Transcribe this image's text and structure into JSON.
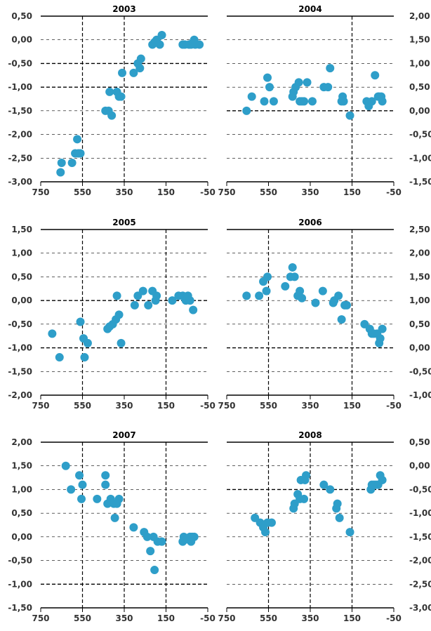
{
  "colors": {
    "point": "#2e9ec9",
    "grid": "#000000",
    "text": "#333333"
  },
  "chart_data": [
    {
      "type": "scatter",
      "title": "2003",
      "axis_side": "left",
      "xlim": [
        750,
        -50
      ],
      "ylim": [
        -3.0,
        0.5
      ],
      "x_ticks": [
        "750",
        "550",
        "350",
        "150",
        "-50"
      ],
      "y_ticks": [
        "0,50",
        "0,00",
        "-0,50",
        "-1,00",
        "-1,50",
        "-2,00",
        "-2,50",
        "-3,00"
      ],
      "grid": "y dashed, bold at -0.5 and -1.0; vertical dashed at 550 and 350",
      "points": [
        {
          "x": 655,
          "y": -2.8
        },
        {
          "x": 650,
          "y": -2.6
        },
        {
          "x": 600,
          "y": -2.6
        },
        {
          "x": 585,
          "y": -2.4
        },
        {
          "x": 575,
          "y": -2.1
        },
        {
          "x": 570,
          "y": -2.4
        },
        {
          "x": 560,
          "y": -2.4
        },
        {
          "x": 440,
          "y": -1.5
        },
        {
          "x": 425,
          "y": -1.5
        },
        {
          "x": 420,
          "y": -1.1
        },
        {
          "x": 410,
          "y": -1.6
        },
        {
          "x": 385,
          "y": -1.1
        },
        {
          "x": 375,
          "y": -1.2
        },
        {
          "x": 360,
          "y": -0.7
        },
        {
          "x": 365,
          "y": -1.2
        },
        {
          "x": 305,
          "y": -0.7
        },
        {
          "x": 285,
          "y": -0.5
        },
        {
          "x": 275,
          "y": -0.6
        },
        {
          "x": 270,
          "y": -0.4
        },
        {
          "x": 215,
          "y": -0.1
        },
        {
          "x": 205,
          "y": -0.05
        },
        {
          "x": 195,
          "y": 0.0
        },
        {
          "x": 180,
          "y": -0.1
        },
        {
          "x": 170,
          "y": 0.1
        },
        {
          "x": 70,
          "y": -0.1
        },
        {
          "x": 60,
          "y": -0.1
        },
        {
          "x": 40,
          "y": -0.1
        },
        {
          "x": 30,
          "y": -0.1
        },
        {
          "x": 20,
          "y": -0.05
        },
        {
          "x": 15,
          "y": 0.0
        },
        {
          "x": 10,
          "y": -0.1
        },
        {
          "x": -10,
          "y": -0.1
        }
      ]
    },
    {
      "type": "scatter",
      "title": "2004",
      "axis_side": "right",
      "xlim": [
        750,
        -50
      ],
      "ylim": [
        -1.5,
        2.0
      ],
      "x_ticks": [
        "750",
        "550",
        "350",
        "150",
        "-50"
      ],
      "y_ticks": [
        "2,00",
        "1,50",
        "1,00",
        "0,50",
        "0,00",
        "-0,50",
        "-1,00",
        "-1,50"
      ],
      "grid": "y dashed, bold at 0.0; vertical dashed at 150",
      "points": [
        {
          "x": 655,
          "y": 0.0
        },
        {
          "x": 630,
          "y": 0.3
        },
        {
          "x": 570,
          "y": 0.2
        },
        {
          "x": 555,
          "y": 0.7
        },
        {
          "x": 545,
          "y": 0.5
        },
        {
          "x": 525,
          "y": 0.2
        },
        {
          "x": 435,
          "y": 0.3
        },
        {
          "x": 430,
          "y": 0.4
        },
        {
          "x": 420,
          "y": 0.5
        },
        {
          "x": 405,
          "y": 0.6
        },
        {
          "x": 400,
          "y": 0.2
        },
        {
          "x": 390,
          "y": 0.2
        },
        {
          "x": 380,
          "y": 0.2
        },
        {
          "x": 365,
          "y": 0.6
        },
        {
          "x": 340,
          "y": 0.2
        },
        {
          "x": 285,
          "y": 0.5
        },
        {
          "x": 265,
          "y": 0.5
        },
        {
          "x": 255,
          "y": 0.9
        },
        {
          "x": 200,
          "y": 0.2
        },
        {
          "x": 195,
          "y": 0.3
        },
        {
          "x": 190,
          "y": 0.2
        },
        {
          "x": 160,
          "y": -0.1
        },
        {
          "x": 80,
          "y": 0.2
        },
        {
          "x": 70,
          "y": 0.1
        },
        {
          "x": 55,
          "y": 0.2
        },
        {
          "x": 40,
          "y": 0.75
        },
        {
          "x": 25,
          "y": 0.3
        },
        {
          "x": 20,
          "y": 0.3
        },
        {
          "x": 10,
          "y": 0.3
        },
        {
          "x": 5,
          "y": 0.2
        }
      ]
    },
    {
      "type": "scatter",
      "title": "2005",
      "axis_side": "left",
      "xlim": [
        750,
        -50
      ],
      "ylim": [
        -2.0,
        1.5
      ],
      "x_ticks": [
        "750",
        "550",
        "350",
        "150",
        "-50"
      ],
      "y_ticks": [
        "1,50",
        "1,00",
        "0,50",
        "0,00",
        "-0,50",
        "-1,00",
        "-1,50",
        "-2,00"
      ],
      "grid": "y dashed, bold at 0.0 and -1.0; vertical dashed at 550 and 150",
      "points": [
        {
          "x": 695,
          "y": -0.7
        },
        {
          "x": 660,
          "y": -1.2
        },
        {
          "x": 560,
          "y": -0.45
        },
        {
          "x": 545,
          "y": -0.8
        },
        {
          "x": 540,
          "y": -1.2
        },
        {
          "x": 525,
          "y": -0.9
        },
        {
          "x": 430,
          "y": -0.6
        },
        {
          "x": 420,
          "y": -0.55
        },
        {
          "x": 405,
          "y": -0.5
        },
        {
          "x": 390,
          "y": -0.4
        },
        {
          "x": 385,
          "y": 0.1
        },
        {
          "x": 375,
          "y": -0.3
        },
        {
          "x": 365,
          "y": -0.9
        },
        {
          "x": 300,
          "y": -0.1
        },
        {
          "x": 285,
          "y": 0.1
        },
        {
          "x": 260,
          "y": 0.2
        },
        {
          "x": 235,
          "y": -0.1
        },
        {
          "x": 215,
          "y": 0.2
        },
        {
          "x": 200,
          "y": 0.0
        },
        {
          "x": 195,
          "y": 0.1
        },
        {
          "x": 120,
          "y": 0.0
        },
        {
          "x": 90,
          "y": 0.1
        },
        {
          "x": 70,
          "y": 0.1
        },
        {
          "x": 60,
          "y": 0.05
        },
        {
          "x": 55,
          "y": 0.0
        },
        {
          "x": 45,
          "y": 0.1
        },
        {
          "x": 35,
          "y": 0.0
        },
        {
          "x": 20,
          "y": -0.2
        }
      ]
    },
    {
      "type": "scatter",
      "title": "2006",
      "axis_side": "right",
      "xlim": [
        750,
        -50
      ],
      "ylim": [
        -1.0,
        2.5
      ],
      "x_ticks": [
        "750",
        "550",
        "350",
        "150",
        "-50"
      ],
      "y_ticks": [
        "2,50",
        "2,00",
        "1,50",
        "1,00",
        "0,50",
        "0,00",
        "-0,50",
        "-1,00"
      ],
      "grid": "y dashed, bold at 0.0; vertical dashed at 550 and 150",
      "points": [
        {
          "x": 655,
          "y": 1.1
        },
        {
          "x": 595,
          "y": 1.1
        },
        {
          "x": 575,
          "y": 1.4
        },
        {
          "x": 560,
          "y": 1.2
        },
        {
          "x": 555,
          "y": 1.5
        },
        {
          "x": 470,
          "y": 1.3
        },
        {
          "x": 445,
          "y": 1.5
        },
        {
          "x": 435,
          "y": 1.7
        },
        {
          "x": 425,
          "y": 1.5
        },
        {
          "x": 410,
          "y": 1.1
        },
        {
          "x": 400,
          "y": 1.2
        },
        {
          "x": 390,
          "y": 1.05
        },
        {
          "x": 325,
          "y": 0.95
        },
        {
          "x": 290,
          "y": 1.2
        },
        {
          "x": 240,
          "y": 0.95
        },
        {
          "x": 235,
          "y": 1.0
        },
        {
          "x": 215,
          "y": 1.1
        },
        {
          "x": 200,
          "y": 0.6
        },
        {
          "x": 185,
          "y": 0.9
        },
        {
          "x": 175,
          "y": 0.9
        },
        {
          "x": 90,
          "y": 0.5
        },
        {
          "x": 65,
          "y": 0.4
        },
        {
          "x": 55,
          "y": 0.3
        },
        {
          "x": 45,
          "y": 0.3
        },
        {
          "x": 30,
          "y": 0.3
        },
        {
          "x": 20,
          "y": 0.1
        },
        {
          "x": 15,
          "y": 0.2
        },
        {
          "x": 5,
          "y": 0.4
        }
      ]
    },
    {
      "type": "scatter",
      "title": "2007",
      "axis_side": "left",
      "xlim": [
        750,
        -50
      ],
      "ylim": [
        -1.5,
        2.0
      ],
      "x_ticks": [
        "750",
        "550",
        "350",
        "150",
        "-50"
      ],
      "y_ticks": [
        "2,00",
        "1,50",
        "1,00",
        "0,50",
        "0,00",
        "-0,50",
        "-1,00",
        "-1,50"
      ],
      "grid": "y dashed, bold at -1.0; vertical dashed at 550, 350 and 150",
      "points": [
        {
          "x": 630,
          "y": 1.5
        },
        {
          "x": 605,
          "y": 1.0
        },
        {
          "x": 565,
          "y": 1.3
        },
        {
          "x": 555,
          "y": 0.8
        },
        {
          "x": 550,
          "y": 1.1
        },
        {
          "x": 480,
          "y": 0.8
        },
        {
          "x": 440,
          "y": 1.3
        },
        {
          "x": 440,
          "y": 1.1
        },
        {
          "x": 430,
          "y": 0.7
        },
        {
          "x": 415,
          "y": 0.8
        },
        {
          "x": 400,
          "y": 0.7
        },
        {
          "x": 395,
          "y": 0.4
        },
        {
          "x": 385,
          "y": 0.7
        },
        {
          "x": 375,
          "y": 0.8
        },
        {
          "x": 305,
          "y": 0.2
        },
        {
          "x": 255,
          "y": 0.1
        },
        {
          "x": 240,
          "y": 0.0
        },
        {
          "x": 225,
          "y": -0.3
        },
        {
          "x": 210,
          "y": 0.0
        },
        {
          "x": 205,
          "y": -0.7
        },
        {
          "x": 190,
          "y": -0.1
        },
        {
          "x": 170,
          "y": -0.1
        },
        {
          "x": 70,
          "y": -0.1
        },
        {
          "x": 65,
          "y": 0.0
        },
        {
          "x": 50,
          "y": -0.05
        },
        {
          "x": 35,
          "y": 0.0
        },
        {
          "x": 30,
          "y": -0.1
        },
        {
          "x": 25,
          "y": 0.0
        },
        {
          "x": 15,
          "y": 0.0
        }
      ]
    },
    {
      "type": "scatter",
      "title": "2008",
      "axis_side": "right",
      "xlim": [
        750,
        -50
      ],
      "ylim": [
        -3.0,
        0.5
      ],
      "x_ticks": [
        "750",
        "550",
        "350",
        "150",
        "-50"
      ],
      "y_ticks": [
        "0,50",
        "0,00",
        "-0,50",
        "-1,00",
        "-1,50",
        "-2,00",
        "-2,50",
        "-3,00"
      ],
      "grid": "y dashed, bold at -0.5; vertical dashed at 550, 350 and 150",
      "points": [
        {
          "x": 615,
          "y": -1.1
        },
        {
          "x": 590,
          "y": -1.2
        },
        {
          "x": 575,
          "y": -1.3
        },
        {
          "x": 565,
          "y": -1.4
        },
        {
          "x": 555,
          "y": -1.2
        },
        {
          "x": 535,
          "y": -1.2
        },
        {
          "x": 430,
          "y": -0.9
        },
        {
          "x": 425,
          "y": -0.8
        },
        {
          "x": 410,
          "y": -0.6
        },
        {
          "x": 400,
          "y": -0.7
        },
        {
          "x": 395,
          "y": -0.3
        },
        {
          "x": 380,
          "y": -0.7
        },
        {
          "x": 375,
          "y": -0.3
        },
        {
          "x": 370,
          "y": -0.2
        },
        {
          "x": 285,
          "y": -0.4
        },
        {
          "x": 255,
          "y": -0.5
        },
        {
          "x": 225,
          "y": -0.9
        },
        {
          "x": 220,
          "y": -0.8
        },
        {
          "x": 210,
          "y": -1.1
        },
        {
          "x": 160,
          "y": -1.4
        },
        {
          "x": 60,
          "y": -0.5
        },
        {
          "x": 55,
          "y": -0.4
        },
        {
          "x": 45,
          "y": -0.4
        },
        {
          "x": 35,
          "y": -0.4
        },
        {
          "x": 25,
          "y": -0.4
        },
        {
          "x": 15,
          "y": -0.2
        },
        {
          "x": 5,
          "y": -0.3
        }
      ]
    }
  ]
}
